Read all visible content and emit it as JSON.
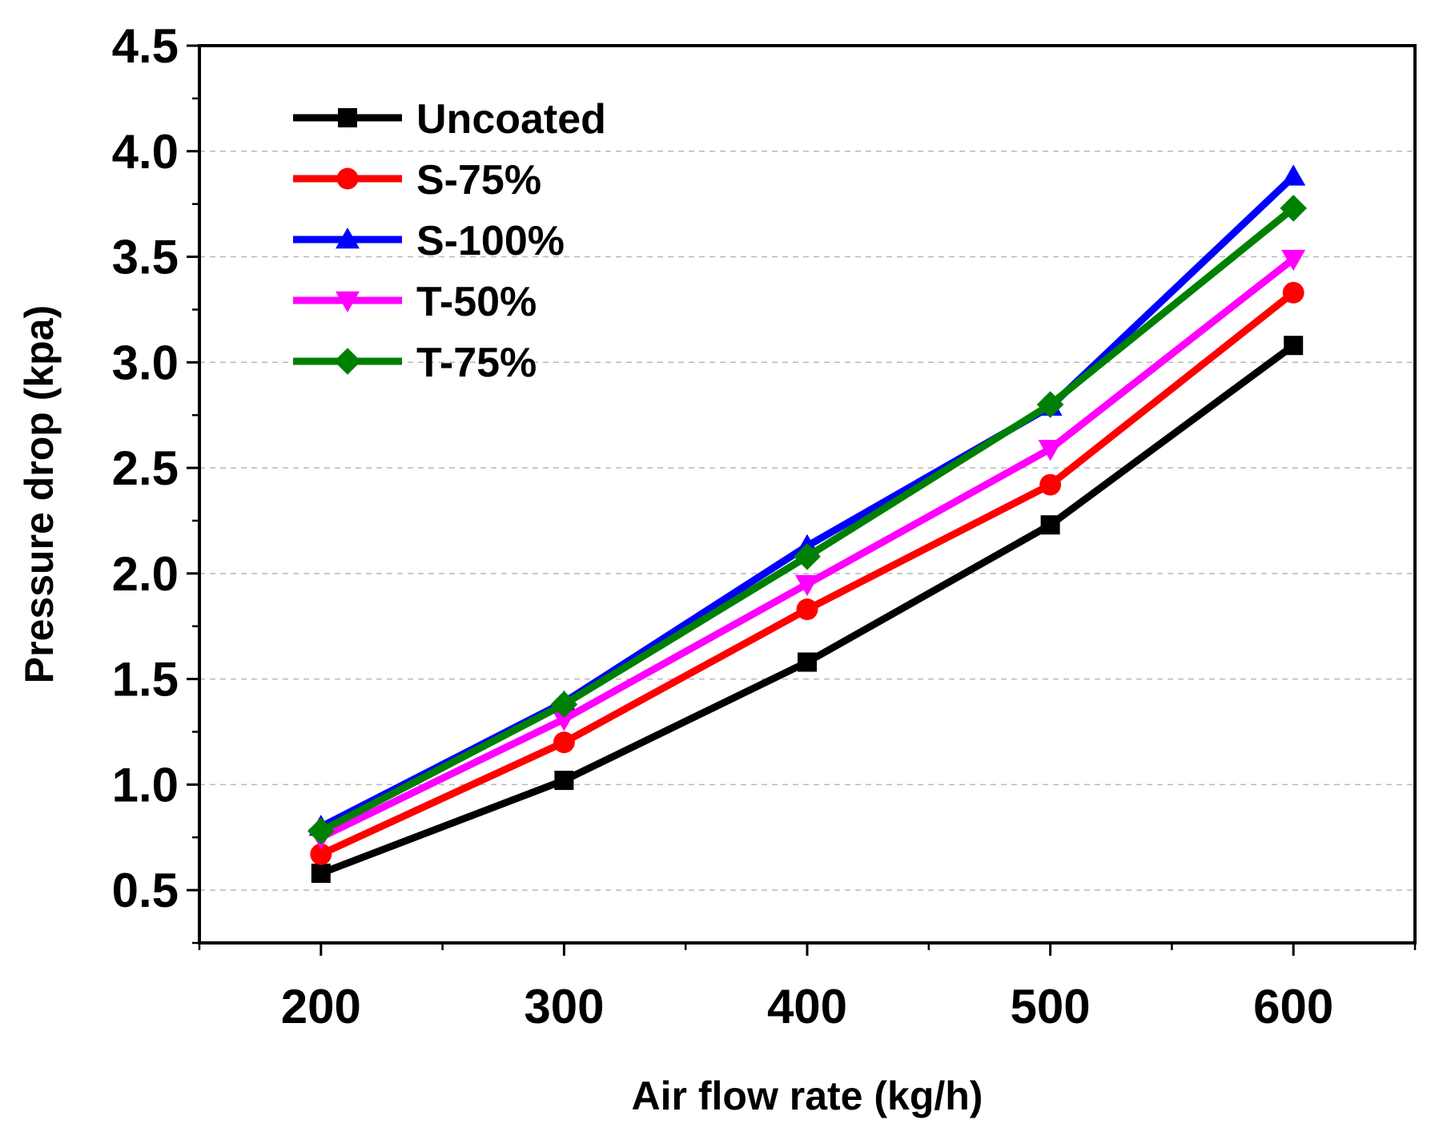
{
  "chart_data": {
    "type": "line",
    "title": "",
    "xlabel": "Air flow rate (kg/h)",
    "ylabel": "Pressure drop (kpa)",
    "x": [
      200,
      300,
      400,
      500,
      600
    ],
    "xlim": [
      150,
      650
    ],
    "ylim": [
      0.25,
      4.5
    ],
    "xticks": [
      "200",
      "300",
      "400",
      "500",
      "600"
    ],
    "yticks": [
      "0.5",
      "1.0",
      "1.5",
      "2.0",
      "2.5",
      "3.0",
      "3.5",
      "4.0",
      "4.5"
    ],
    "grid": "horizontal dashed",
    "legend_position": "top-left",
    "series": [
      {
        "name": "Uncoated",
        "color": "#000000",
        "marker": "square",
        "values": [
          0.58,
          1.02,
          1.58,
          2.23,
          3.08
        ]
      },
      {
        "name": "S-75%",
        "color": "#ff0000",
        "marker": "circle",
        "values": [
          0.67,
          1.2,
          1.83,
          2.42,
          3.33
        ]
      },
      {
        "name": "S-100%",
        "color": "#0000ff",
        "marker": "triangle-up",
        "values": [
          0.8,
          1.39,
          2.13,
          2.79,
          3.88
        ]
      },
      {
        "name": "T-50%",
        "color": "#ff00ff",
        "marker": "triangle-down",
        "values": [
          0.75,
          1.31,
          1.95,
          2.59,
          3.49
        ]
      },
      {
        "name": "T-75%",
        "color": "#008000",
        "marker": "diamond",
        "values": [
          0.78,
          1.38,
          2.08,
          2.8,
          3.73
        ]
      }
    ]
  }
}
